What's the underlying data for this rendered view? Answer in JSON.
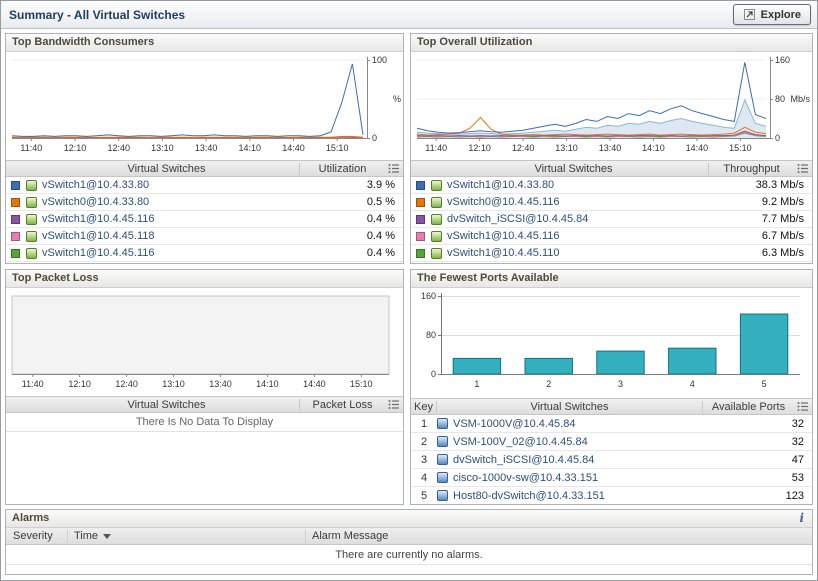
{
  "header": {
    "title": "Summary - All Virtual Switches",
    "explore_label": "Explore"
  },
  "panels": {
    "bandwidth": {
      "title": "Top Bandwidth Consumers",
      "columns": {
        "name": "Virtual Switches",
        "value": "Utilization"
      },
      "rows": [
        {
          "color": "#3b6eb5",
          "name": "vSwitch1@10.4.33.80",
          "value": "3.9 %"
        },
        {
          "color": "#e1780c",
          "name": "vSwitch0@10.4.33.80",
          "value": "0.5 %"
        },
        {
          "color": "#8a52a5",
          "name": "vSwitch1@10.4.45.116",
          "value": "0.4 %"
        },
        {
          "color": "#ea7cb0",
          "name": "vSwitch1@10.4.45.118",
          "value": "0.4 %"
        },
        {
          "color": "#56a636",
          "name": "vSwitch1@10.4.45.116",
          "value": "0.4 %"
        }
      ]
    },
    "utilization": {
      "title": "Top Overall Utilization",
      "columns": {
        "name": "Virtual Switches",
        "value": "Throughput"
      },
      "rows": [
        {
          "color": "#3b6eb5",
          "name": "vSwitch1@10.4.33.80",
          "value": "38.3 Mb/s"
        },
        {
          "color": "#e1780c",
          "name": "vSwitch0@10.4.45.116",
          "value": "9.2 Mb/s"
        },
        {
          "color": "#8a52a5",
          "name": "dvSwitch_iSCSI@10.4.45.84",
          "value": "7.7 Mb/s"
        },
        {
          "color": "#ea7cb0",
          "name": "vSwitch1@10.4.45.116",
          "value": "6.7 Mb/s"
        },
        {
          "color": "#56a636",
          "name": "vSwitch1@10.4.45.110",
          "value": "6.3 Mb/s"
        }
      ]
    },
    "packetloss": {
      "title": "Top Packet Loss",
      "columns": {
        "name": "Virtual Switches",
        "value": "Packet Loss"
      },
      "empty_message": "There Is No Data To Display"
    },
    "ports": {
      "title": "The Fewest Ports Available",
      "columns": {
        "key": "Key",
        "name": "Virtual Switches",
        "value": "Available Ports"
      },
      "rows": [
        {
          "key": "1",
          "name": "VSM-1000V@10.4.45.84",
          "value": "32"
        },
        {
          "key": "2",
          "name": "VSM-100V_02@10.4.45.84",
          "value": "32"
        },
        {
          "key": "3",
          "name": "dvSwitch_iSCSI@10.4.45.84",
          "value": "47"
        },
        {
          "key": "4",
          "name": "cisco-1000v-sw@10.4.33.151",
          "value": "53"
        },
        {
          "key": "5",
          "name": "Host80-dvSwitch@10.4.33.151",
          "value": "123"
        }
      ]
    }
  },
  "alarms": {
    "title": "Alarms",
    "info_icon": "i",
    "columns": {
      "severity": "Severity",
      "time": "Time",
      "message": "Alarm Message"
    },
    "empty_message": "There are currently no alarms."
  },
  "chart_data": [
    {
      "id": "bandwidth",
      "type": "line",
      "title": "Top Bandwidth Consumers",
      "ylabel": "%",
      "ylim": [
        0,
        100
      ],
      "yticks": [
        0,
        100
      ],
      "x_tick_labels": [
        "11:40",
        "12:10",
        "12:40",
        "13:10",
        "13:40",
        "14:10",
        "14:40",
        "15:10"
      ],
      "series": [
        {
          "name": "vSwitch1@10.4.45.116 (green)",
          "color": "#56a636",
          "values": [
            0.4,
            0.3,
            0.4,
            0.4,
            0.3,
            0.4,
            0.3,
            0.4,
            0.4,
            0.3,
            0.4,
            0.3,
            0.4,
            0.4,
            0.3,
            0.4,
            0.3,
            0.4,
            0.4,
            0.3,
            0.4,
            0.3,
            0.4,
            0.4,
            0.3,
            0.4,
            0.3,
            0.4,
            0.4,
            0.3,
            0.5,
            1,
            0.8,
            0.5
          ]
        },
        {
          "name": "vSwitch1@10.4.45.118 (pink)",
          "color": "#ea7cb0",
          "values": [
            0.5,
            0.4,
            0.5,
            0.5,
            0.4,
            0.5,
            0.4,
            0.5,
            0.5,
            0.4,
            0.5,
            0.4,
            0.5,
            0.5,
            0.4,
            0.5,
            0.4,
            0.5,
            0.5,
            0.4,
            0.5,
            0.4,
            0.5,
            0.5,
            0.4,
            0.5,
            0.4,
            0.5,
            0.5,
            0.4,
            0.6,
            1.2,
            1,
            0.6
          ]
        },
        {
          "name": "vSwitch1@10.4.45.116 (purple)",
          "color": "#8a52a5",
          "values": [
            0.6,
            0.7,
            0.6,
            0.7,
            0.6,
            0.6,
            0.7,
            0.6,
            0.7,
            0.6,
            0.7,
            0.6,
            0.6,
            0.7,
            0.6,
            0.7,
            0.6,
            0.7,
            0.6,
            0.6,
            0.7,
            0.6,
            0.7,
            0.6,
            0.7,
            0.6,
            0.6,
            0.7,
            0.6,
            0.7,
            0.8,
            1.5,
            1.2,
            0.8
          ]
        },
        {
          "name": "vSwitch0@10.4.33.80 (orange)",
          "color": "#e1780c",
          "values": [
            1,
            0.8,
            1,
            1,
            0.8,
            1,
            0.9,
            1,
            0.8,
            1,
            1,
            0.9,
            1,
            0.8,
            1,
            1,
            0.9,
            0.8,
            1,
            1,
            0.9,
            1,
            0.8,
            1,
            0.9,
            1,
            0.8,
            1,
            0.9,
            1,
            1,
            2,
            2,
            1
          ]
        },
        {
          "name": "vSwitch1@10.4.33.80 (blue)",
          "color": "#3b6eb5",
          "values": [
            3,
            2,
            2,
            3,
            2,
            3,
            3,
            2,
            3,
            4,
            3,
            2,
            3,
            3,
            2,
            3,
            4,
            3,
            3,
            4,
            3,
            3,
            2,
            3,
            3,
            2,
            3,
            3,
            2,
            3,
            8,
            45,
            95,
            4
          ]
        }
      ]
    },
    {
      "id": "utilization",
      "type": "line",
      "title": "Top Overall Utilization",
      "ylabel": "Mb/s",
      "ylim": [
        0,
        160
      ],
      "yticks": [
        0,
        80,
        160
      ],
      "x_tick_labels": [
        "11:40",
        "12:10",
        "12:40",
        "13:10",
        "13:40",
        "14:10",
        "14:40",
        "15:10"
      ],
      "series": [
        {
          "name": "aggregate (area)",
          "color": "#8fb4d8",
          "fill": "rgba(143,180,216,0.30)",
          "values": [
            12,
            10,
            9,
            8,
            8,
            9,
            10,
            9,
            8,
            9,
            10,
            12,
            14,
            16,
            14,
            18,
            22,
            20,
            26,
            24,
            30,
            28,
            34,
            30,
            36,
            40,
            34,
            30,
            26,
            22,
            20,
            78,
            30,
            24
          ]
        },
        {
          "name": "vSwitch1@10.4.45.110 (green)",
          "color": "#56a636",
          "values": [
            2,
            3,
            2,
            3,
            2,
            3,
            2,
            3,
            2,
            3,
            3,
            2,
            3,
            2,
            3,
            3,
            2,
            3,
            2,
            3,
            3,
            2,
            3,
            2,
            3,
            3,
            2,
            3,
            2,
            3,
            4,
            10,
            5,
            3
          ]
        },
        {
          "name": "vSwitch1@10.4.45.116 (pink)",
          "color": "#ea7cb0",
          "values": [
            3,
            4,
            3,
            4,
            3,
            4,
            3,
            4,
            3,
            4,
            3,
            4,
            3,
            4,
            4,
            3,
            4,
            3,
            4,
            3,
            4,
            3,
            4,
            4,
            3,
            4,
            3,
            4,
            3,
            4,
            5,
            12,
            6,
            4
          ]
        },
        {
          "name": "dvSwitch_iSCSI@10.4.45.84 (purple)",
          "color": "#8a52a5",
          "values": [
            5,
            4,
            5,
            4,
            5,
            4,
            5,
            4,
            5,
            4,
            5,
            4,
            5,
            5,
            4,
            5,
            4,
            5,
            4,
            5,
            4,
            5,
            5,
            4,
            5,
            4,
            5,
            4,
            5,
            5,
            6,
            14,
            7,
            5
          ]
        },
        {
          "name": "vSwitch0@10.4.45.116 (orange)",
          "color": "#e1780c",
          "values": [
            8,
            6,
            7,
            8,
            10,
            20,
            42,
            18,
            8,
            6,
            6,
            7,
            6,
            7,
            8,
            7,
            6,
            7,
            8,
            7,
            6,
            7,
            8,
            6,
            7,
            8,
            7,
            6,
            7,
            8,
            10,
            22,
            12,
            9
          ]
        },
        {
          "name": "vSwitch1@10.4.33.80 (blue)",
          "color": "#3b6eb5",
          "values": [
            20,
            15,
            12,
            10,
            11,
            13,
            15,
            13,
            12,
            14,
            16,
            20,
            24,
            28,
            24,
            30,
            38,
            34,
            44,
            40,
            50,
            46,
            56,
            50,
            60,
            66,
            56,
            50,
            44,
            38,
            34,
            155,
            48,
            40
          ]
        }
      ]
    },
    {
      "id": "packetloss",
      "type": "line",
      "title": "Top Packet Loss",
      "no_data": true,
      "ylim": [
        0,
        1
      ],
      "yticks": [],
      "x_tick_labels": [
        "11:40",
        "12:10",
        "12:40",
        "13:10",
        "13:40",
        "14:10",
        "14:40",
        "15:10"
      ],
      "series": []
    },
    {
      "id": "ports",
      "type": "bar",
      "title": "The Fewest Ports Available",
      "categories": [
        "1",
        "2",
        "3",
        "4",
        "5"
      ],
      "values": [
        32,
        32,
        47,
        53,
        123
      ],
      "ylim": [
        0,
        160
      ],
      "yticks": [
        0,
        80,
        160
      ],
      "bar_color": "#35b0bf",
      "bar_stroke": "#0f7280"
    }
  ]
}
